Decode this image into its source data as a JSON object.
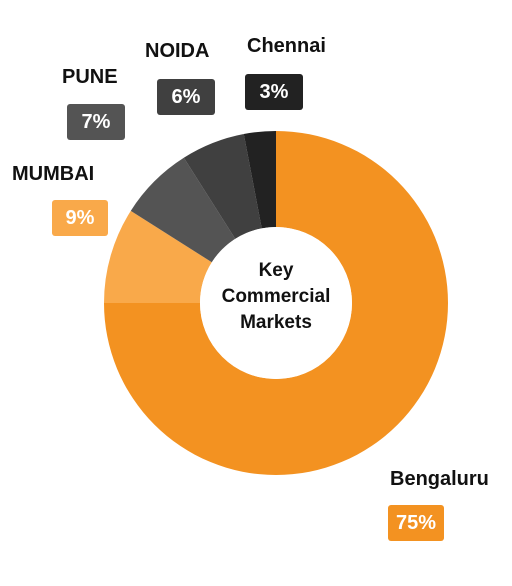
{
  "chart_data": {
    "type": "pie",
    "variant": "donut",
    "title_lines": [
      "Key",
      "Commercial",
      "Markets"
    ],
    "slices": [
      {
        "name": "Bengaluru",
        "value": 75,
        "label": "75%",
        "color": "#F39221"
      },
      {
        "name": "MUMBAI",
        "value": 9,
        "label": "9%",
        "color": "#F9A94A"
      },
      {
        "name": "PUNE",
        "value": 7,
        "label": "7%",
        "color": "#545454"
      },
      {
        "name": "NOIDA",
        "value": 6,
        "label": "6%",
        "color": "#404040"
      },
      {
        "name": "Chennai",
        "value": 3,
        "label": "3%",
        "color": "#222222"
      }
    ]
  }
}
